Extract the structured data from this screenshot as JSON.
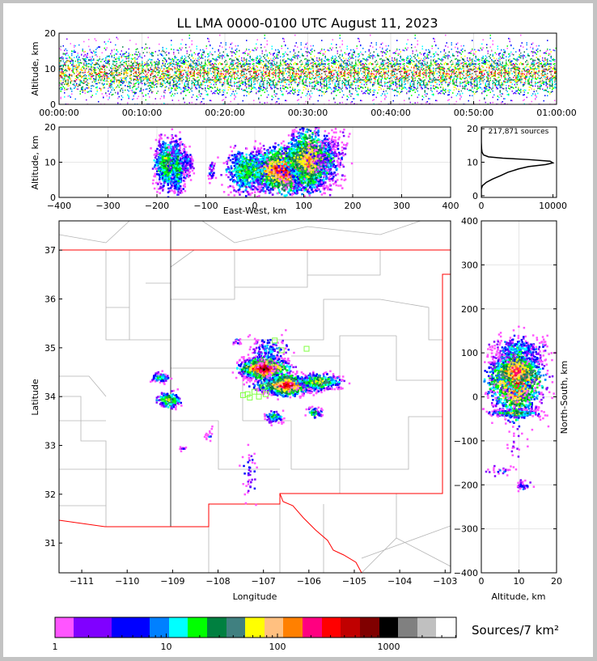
{
  "chart_data": {
    "title": "LL LMA 0000-0100 UTC August 11, 2023",
    "total_sources_label": "217,871 sources",
    "panels": [
      {
        "id": "time-altitude",
        "type": "heatmap",
        "xlabel": "",
        "ylabel": "Altitude, km",
        "xticks": [
          "00:00:00",
          "00:10:00",
          "00:20:00",
          "00:30:00",
          "00:40:00",
          "00:50:00",
          "01:00:00"
        ],
        "ylim": [
          0,
          20
        ],
        "yticks": [
          "0",
          "10",
          "20"
        ]
      },
      {
        "id": "eastwest-altitude",
        "type": "heatmap",
        "xlabel": "East-West, km",
        "ylabel": "Altitude, km",
        "xlim": [
          -400,
          400
        ],
        "xticks": [
          "−400",
          "−300",
          "−200",
          "−100",
          "0",
          "100",
          "200",
          "300",
          "400"
        ],
        "ylim": [
          0,
          20
        ],
        "yticks": [
          "0",
          "10",
          "20"
        ]
      },
      {
        "id": "altitude-histogram",
        "type": "line",
        "xlim": [
          0,
          10500
        ],
        "xticks": [
          "0",
          "10000"
        ],
        "ylim": [
          -0.5,
          20.5
        ],
        "yticks": [
          "0",
          "10",
          "20"
        ],
        "points": [
          [
            0,
            -0.5
          ],
          [
            0,
            2
          ],
          [
            150,
            3
          ],
          [
            700,
            4
          ],
          [
            1600,
            5
          ],
          [
            2700,
            6
          ],
          [
            3700,
            7
          ],
          [
            5200,
            8
          ],
          [
            6600,
            8.7
          ],
          [
            9000,
            9.3
          ],
          [
            10000,
            9.8
          ],
          [
            9600,
            10.3
          ],
          [
            6500,
            10.8
          ],
          [
            3000,
            11.2
          ],
          [
            1000,
            11.6
          ],
          [
            300,
            12.2
          ],
          [
            100,
            13
          ],
          [
            40,
            14
          ],
          [
            0,
            16
          ],
          [
            0,
            20.5
          ]
        ]
      },
      {
        "id": "plan-view",
        "type": "heatmap",
        "xlabel": "Longitude",
        "ylabel": "Latitude",
        "xlim": [
          -111.5,
          -102.88
        ],
        "xticks": [
          "−111",
          "−110",
          "−109",
          "−108",
          "−107",
          "−106",
          "−105",
          "−104",
          "−103"
        ],
        "ylim": [
          30.39,
          37.6
        ],
        "yticks": [
          "31",
          "32",
          "33",
          "34",
          "35",
          "36",
          "37"
        ]
      },
      {
        "id": "altitude-northsouth",
        "type": "heatmap",
        "xlabel": "Altitude, km",
        "ylabel": "North-South, km",
        "xlim": [
          0,
          20
        ],
        "xticks": [
          "0",
          "10",
          "20"
        ],
        "ylim": [
          -400,
          400
        ],
        "yticks": [
          "−400",
          "−300",
          "−200",
          "−100",
          "0",
          "100",
          "200",
          "300",
          "400"
        ]
      }
    ],
    "colorbar": {
      "label": "Sources/7 km²",
      "scale": "log",
      "ticks": [
        "1",
        "10",
        "100",
        "1000"
      ],
      "colors": [
        "#ff55ff",
        "#8000ff",
        "#0000ff",
        "#0080ff",
        "#00ffff",
        "#00ff00",
        "#008040",
        "#408080",
        "#ffff00",
        "#ffc080",
        "#ff8000",
        "#ff0080",
        "#ff0000",
        "#c00000",
        "#800000",
        "#000000",
        "#808080",
        "#c0c0c0",
        "#ffffff"
      ]
    },
    "station_color": "#80ff40",
    "boundary_color": "#ff0000"
  }
}
